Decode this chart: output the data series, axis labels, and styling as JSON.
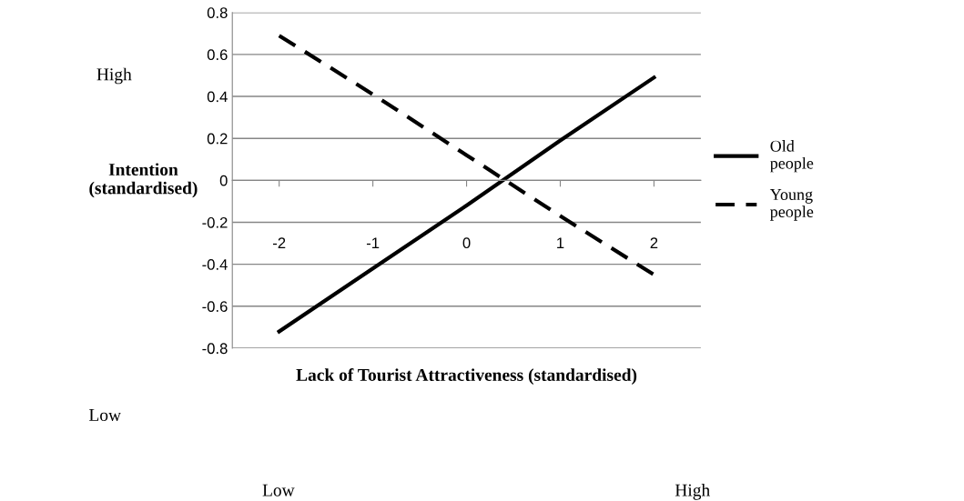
{
  "chart_data": {
    "type": "line",
    "xlabel": "Lack of Tourist Attractiveness (standardised)",
    "ylabel": "Intention\n(standardised)",
    "categories": [
      "-2",
      "-1",
      "0",
      "1",
      "2"
    ],
    "series": [
      {
        "name": "Old\npeople",
        "color": "#000000",
        "line_style": "solid",
        "values": [
          -0.72,
          -0.42,
          -0.12,
          0.19,
          0.49
        ]
      },
      {
        "name": "Young\npeople",
        "color": "#000000",
        "line_style": "dashed",
        "values": [
          0.69,
          0.41,
          0.12,
          -0.17,
          -0.45
        ]
      }
    ],
    "ylim": [
      -0.8,
      0.8
    ],
    "yticks": [
      -0.8,
      -0.6,
      -0.4,
      -0.2,
      0,
      0.2,
      0.4,
      0.6,
      0.8
    ],
    "grid": "y",
    "legend": "right",
    "marker": "none",
    "annotations": [
      "High",
      "Low",
      "Low",
      "High"
    ]
  }
}
